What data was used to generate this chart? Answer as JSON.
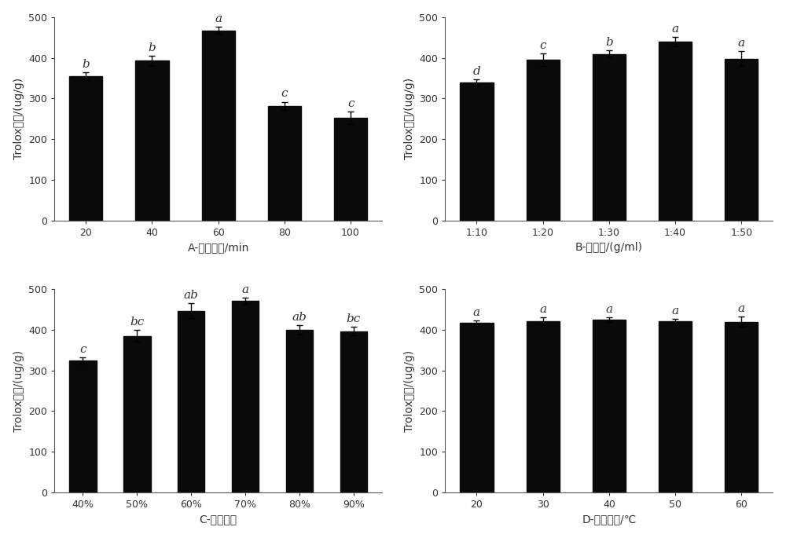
{
  "A": {
    "categories": [
      "20",
      "40",
      "60",
      "80",
      "100"
    ],
    "values": [
      355,
      393,
      468,
      282,
      252
    ],
    "errors": [
      10,
      12,
      8,
      10,
      15
    ],
    "labels": [
      "b",
      "b",
      "a",
      "c",
      "c"
    ],
    "xlabel": "A-超声时间/min",
    "ylabel_cn": "当量/",
    "ylabel_full": "Trolox当量/(ug/g)"
  },
  "B": {
    "categories": [
      "1:10",
      "1:20",
      "1:30",
      "1:40",
      "1:50"
    ],
    "values": [
      340,
      396,
      410,
      440,
      398
    ],
    "errors": [
      8,
      15,
      8,
      12,
      18
    ],
    "labels": [
      "d",
      "c",
      "b",
      "a",
      "a"
    ],
    "xlabel": "B-料液比/(g/ml)",
    "ylabel_full": "Trolox当量/(ug/g)"
  },
  "C": {
    "categories": [
      "40%",
      "50%",
      "60%",
      "70%",
      "80%",
      "90%"
    ],
    "values": [
      325,
      385,
      447,
      472,
      400,
      397
    ],
    "errors": [
      8,
      15,
      18,
      8,
      12,
      10
    ],
    "labels": [
      "c",
      "bc",
      "ab",
      "a",
      "ab",
      "bc"
    ],
    "xlabel": "C-酒精浓度",
    "ylabel_full": "Trolox当量/(ug/g)"
  },
  "D": {
    "categories": [
      "20",
      "30",
      "40",
      "50",
      "60"
    ],
    "values": [
      418,
      422,
      425,
      422,
      420
    ],
    "errors": [
      5,
      8,
      5,
      5,
      12
    ],
    "labels": [
      "a",
      "a",
      "a",
      "a",
      "a"
    ],
    "xlabel": "D-超声温度/℃",
    "ylabel_full": "Trolox当量/(ug/g)"
  },
  "bar_color": "#0a0a0a",
  "background_color": "#ffffff",
  "ylim": [
    0,
    500
  ],
  "yticks": [
    0,
    100,
    200,
    300,
    400,
    500
  ],
  "bar_width": 0.5,
  "tick_fontsize": 9,
  "axis_label_fontsize": 10,
  "letter_fontsize": 11
}
